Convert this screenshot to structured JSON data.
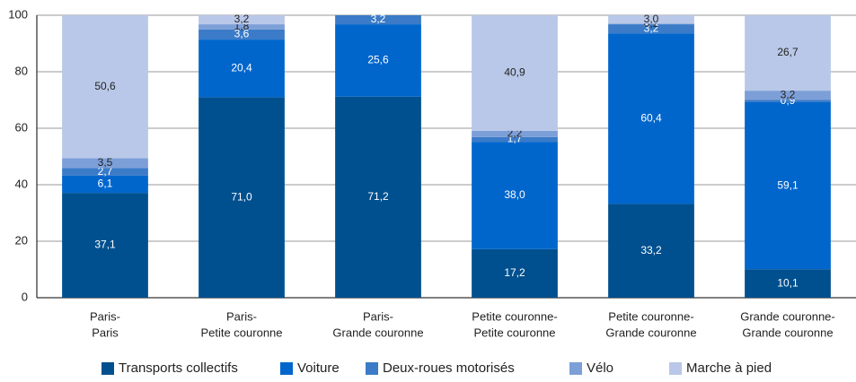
{
  "chart_data": {
    "type": "stacked_bar",
    "categories": [
      [
        "Paris-",
        "Paris"
      ],
      [
        "Paris-",
        "Petite couronne"
      ],
      [
        "Paris-",
        "Grande couronne"
      ],
      [
        "Petite couronne-",
        "Petite couronne"
      ],
      [
        "Petite couronne-",
        "Grande couronne"
      ],
      [
        "Grande couronne-",
        "Grande couronne"
      ]
    ],
    "series": [
      {
        "name": "Transports collectifs",
        "color": "#00508f",
        "values": [
          37.1,
          71.0,
          71.2,
          17.2,
          33.2,
          10.1
        ],
        "value_labels": [
          "37,1",
          "71,0",
          "71,2",
          "17,2",
          "33,2",
          "10,1"
        ]
      },
      {
        "name": "Voiture",
        "color": "#0066cc",
        "values": [
          6.1,
          20.4,
          25.6,
          38.0,
          60.4,
          59.1
        ],
        "value_labels": [
          "6,1",
          "20,4",
          "25,6",
          "38,0",
          "60,4",
          "59,1"
        ]
      },
      {
        "name": "Deux-roues motorisés",
        "color": "#3b7bc8",
        "values": [
          2.7,
          3.6,
          3.2,
          1.7,
          3.2,
          0.9
        ],
        "value_labels": [
          "2,7",
          "3,6",
          "3,2",
          "1,7",
          "3,2",
          "0,9"
        ]
      },
      {
        "name": "Vélo",
        "color": "#7d9fd8",
        "values": [
          3.5,
          1.8,
          null,
          2.2,
          0.2,
          3.2
        ],
        "value_labels": [
          "3,5",
          "1,8",
          null,
          "2,2",
          "0,2",
          "3,2"
        ]
      },
      {
        "name": "Marche à pied",
        "color": "#b9c8e8",
        "values": [
          50.6,
          3.2,
          null,
          40.9,
          3.0,
          26.7
        ],
        "value_labels": [
          "50,6",
          "3,2",
          null,
          "40,9",
          "3,0",
          "26,7"
        ]
      }
    ],
    "ylim": [
      0,
      100
    ],
    "yticks": [
      0,
      20,
      40,
      60,
      80,
      100
    ],
    "grid": true,
    "legend": "bottom"
  }
}
